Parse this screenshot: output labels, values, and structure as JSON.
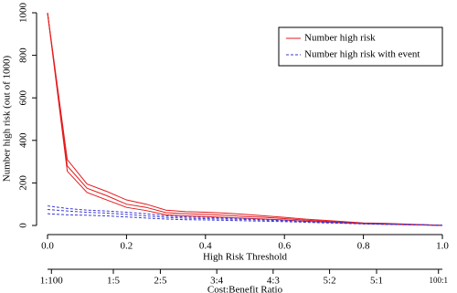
{
  "chart_data": {
    "type": "line",
    "xlabel": "High Risk Threshold",
    "ylabel": "Number high risk (out of 1000)",
    "x2label": "Cost:Benefit Ratio",
    "x": [
      0,
      0.05,
      0.1,
      0.15,
      0.2,
      0.25,
      0.3,
      0.35,
      0.4,
      0.45,
      0.5,
      0.55,
      0.6,
      0.65,
      0.7,
      0.75,
      0.8,
      0.85,
      0.9,
      0.95,
      1.0
    ],
    "series": [
      {
        "name": "Number high risk",
        "color": "#e41a1c",
        "dash": false,
        "values": [
          1000,
          280,
          175,
          140,
          100,
          85,
          60,
          55,
          52,
          48,
          42,
          38,
          32,
          25,
          20,
          15,
          10,
          8,
          5,
          3,
          0
        ],
        "ci_upper": [
          1000,
          310,
          195,
          160,
          120,
          100,
          72,
          65,
          62,
          58,
          52,
          45,
          38,
          30,
          24,
          18,
          12,
          10,
          7,
          4,
          1
        ],
        "ci_lower": [
          1000,
          255,
          155,
          120,
          85,
          70,
          50,
          45,
          42,
          38,
          34,
          30,
          26,
          20,
          16,
          12,
          8,
          6,
          4,
          2,
          0
        ]
      },
      {
        "name": "Number high risk with event",
        "color": "#3a3ad6",
        "dash": true,
        "values": [
          75,
          68,
          62,
          58,
          52,
          45,
          38,
          34,
          32,
          30,
          28,
          25,
          22,
          18,
          15,
          12,
          9,
          7,
          5,
          3,
          0
        ],
        "ci_upper": [
          92,
          80,
          72,
          68,
          62,
          55,
          45,
          40,
          38,
          35,
          32,
          28,
          25,
          20,
          17,
          14,
          10,
          8,
          6,
          3,
          1
        ],
        "ci_lower": [
          55,
          50,
          48,
          45,
          40,
          35,
          30,
          27,
          26,
          24,
          22,
          20,
          18,
          15,
          12,
          10,
          7,
          5,
          4,
          2,
          0
        ]
      }
    ],
    "xlim": [
      0,
      1.0
    ],
    "xticks": [
      {
        "value": 0,
        "label": "0.0"
      },
      0.2,
      0.4,
      0.6,
      0.8,
      {
        "value": 1,
        "label": "1.0"
      }
    ],
    "x2ticks": [
      {
        "value": 0.0099,
        "label": "1:100"
      },
      {
        "value": 0.1667,
        "label": "1:5"
      },
      {
        "value": 0.2857,
        "label": "2:5"
      },
      {
        "value": 0.4286,
        "label": "3:4"
      },
      {
        "value": 0.5714,
        "label": "4:3"
      },
      {
        "value": 0.7143,
        "label": "5:2"
      },
      {
        "value": 0.8333,
        "label": "5:1"
      },
      {
        "value": 0.9901,
        "label": "100:1"
      }
    ],
    "ylim": [
      0,
      1000
    ],
    "yticks": [
      0,
      200,
      400,
      600,
      800,
      1000
    ],
    "legend": "top-right"
  }
}
